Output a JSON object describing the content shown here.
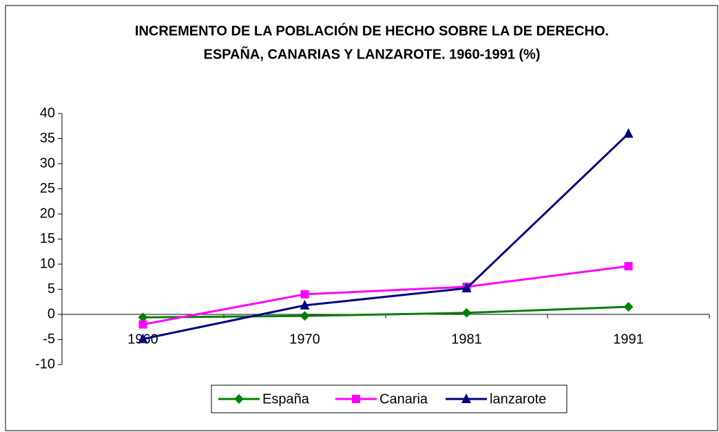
{
  "chart_data": {
    "type": "line",
    "title": [
      "INCREMENTO DE LA POBLACIÓN DE HECHO SOBRE LA DE DERECHO.",
      "ESPAÑA, CANARIAS Y LANZAROTE. 1960-1991 (%)"
    ],
    "categories": [
      "1960",
      "1970",
      "1981",
      "1991"
    ],
    "series": [
      {
        "name": "España",
        "color": "#008000",
        "marker": "diamond",
        "values": [
          -0.6,
          -0.3,
          0.3,
          1.5
        ]
      },
      {
        "name": "Canaria",
        "color": "#ff00ff",
        "marker": "square",
        "values": [
          -2,
          4,
          5.5,
          9.6
        ]
      },
      {
        "name": "lanzarote",
        "color": "#000080",
        "marker": "triangle",
        "values": [
          -4.9,
          1.8,
          5.2,
          36
        ]
      }
    ],
    "ylim": [
      -10,
      40
    ],
    "yticks": [
      -10,
      -5,
      0,
      5,
      10,
      15,
      20,
      25,
      30,
      35,
      40
    ],
    "grid": false,
    "legend": "bottom"
  }
}
